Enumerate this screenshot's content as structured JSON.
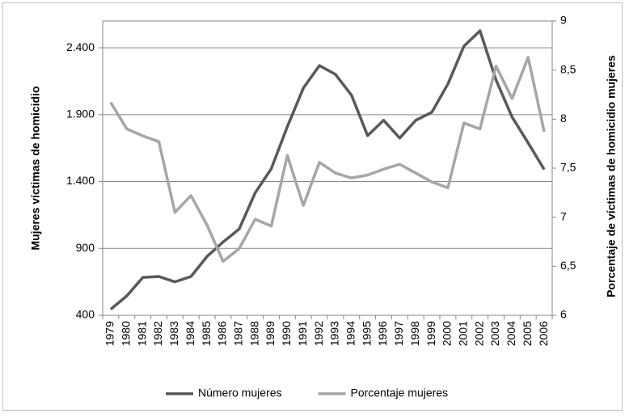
{
  "chart_data": {
    "type": "line",
    "categories": [
      "1979",
      "1980",
      "1981",
      "1982",
      "1983",
      "1984",
      "1985",
      "1986",
      "1987",
      "1988",
      "1989",
      "1990",
      "1991",
      "1992",
      "1993",
      "1994",
      "1995",
      "1996",
      "1997",
      "1998",
      "1999",
      "2000",
      "2001",
      "2002",
      "2003",
      "2004",
      "2005",
      "2006"
    ],
    "y_label": "Mujeres víctimas de homicidio",
    "y2_label": "Porcentaje de víctimas de homicidio mujeres",
    "series": [
      {
        "name": "Número mujeres",
        "color": "#595959",
        "values": [
          445,
          545,
          683,
          690,
          650,
          690,
          840,
          948,
          1045,
          1316,
          1496,
          1810,
          2099,
          2267,
          2201,
          2045,
          1743,
          1858,
          1725,
          1858,
          1918,
          2129,
          2412,
          2527,
          2159,
          1882,
          1689,
          1490
        ]
      },
      {
        "name": "Porcentaje mujeres",
        "color": "#a6a6a6",
        "axis": "y2",
        "values": [
          8.17,
          7.9,
          7.83,
          7.77,
          7.05,
          7.22,
          6.92,
          6.55,
          6.68,
          6.98,
          6.91,
          7.63,
          7.12,
          7.56,
          7.45,
          7.4,
          7.43,
          7.49,
          7.54,
          7.45,
          7.36,
          7.3,
          7.96,
          7.9,
          8.54,
          8.21,
          8.63,
          7.87
        ]
      }
    ],
    "ylim": [
      400,
      2600
    ],
    "yticks": [
      400,
      {
        "value": 900,
        "label": "900"
      },
      {
        "value": 1400,
        "label": "1.400"
      },
      {
        "value": 1900,
        "label": "1.900"
      },
      {
        "value": 2400,
        "label": "2.400"
      }
    ],
    "y2lim": [
      6,
      9
    ],
    "y2ticks": [
      6,
      {
        "value": 6.5,
        "label": "6,5"
      },
      7,
      {
        "value": 7.5,
        "label": "7,5"
      },
      8,
      {
        "value": 8.5,
        "label": "8,5"
      },
      9
    ],
    "grid": true,
    "legend_position": "bottom"
  }
}
